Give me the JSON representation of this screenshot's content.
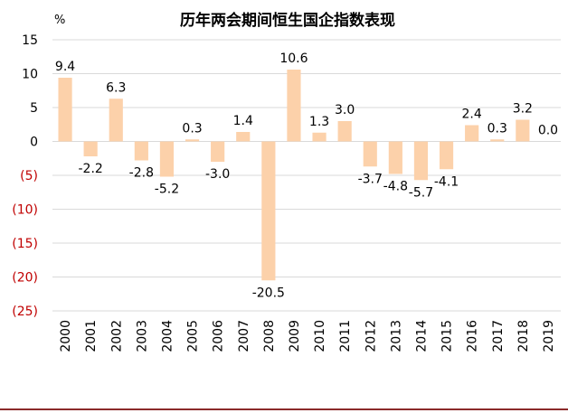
{
  "chart_data": {
    "type": "bar",
    "title": "历年两会期间恒生国企指数表现",
    "unit_label": "%",
    "categories": [
      "2000",
      "2001",
      "2002",
      "2003",
      "2004",
      "2005",
      "2006",
      "2007",
      "2008",
      "2009",
      "2010",
      "2011",
      "2012",
      "2013",
      "2014",
      "2015",
      "2016",
      "2017",
      "2018",
      "2019"
    ],
    "values": [
      9.4,
      -2.2,
      6.3,
      -2.8,
      -5.2,
      0.3,
      -3.0,
      1.4,
      -20.5,
      10.6,
      1.3,
      3.0,
      -3.7,
      -4.8,
      -5.7,
      -4.1,
      2.4,
      0.3,
      3.2,
      0.0
    ],
    "value_labels": [
      "9.4",
      "-2.2",
      "6.3",
      "-2.8",
      "-5.2",
      "0.3",
      "-3.0",
      "1.4",
      "-20.5",
      "10.6",
      "1.3",
      "3.0",
      "-3.7",
      "-4.8",
      "-5.7",
      "-4.1",
      "2.4",
      "0.3",
      "3.2",
      "0.0"
    ],
    "ylim": [
      -25,
      15
    ],
    "yticks": [
      15,
      10,
      5,
      0,
      -5,
      -10,
      -15,
      -20,
      -25
    ],
    "ytick_labels": [
      "15",
      "10",
      "5",
      "0",
      "(5)",
      "(10)",
      "(15)",
      "(20)",
      "(25)"
    ],
    "grid": true,
    "colors": {
      "bar": "#fcd1aa",
      "grid": "#d9d9d9",
      "positive_tick": "#000000",
      "negative_tick": "#c00000",
      "bottom_rule": "#8b2a2a"
    }
  }
}
